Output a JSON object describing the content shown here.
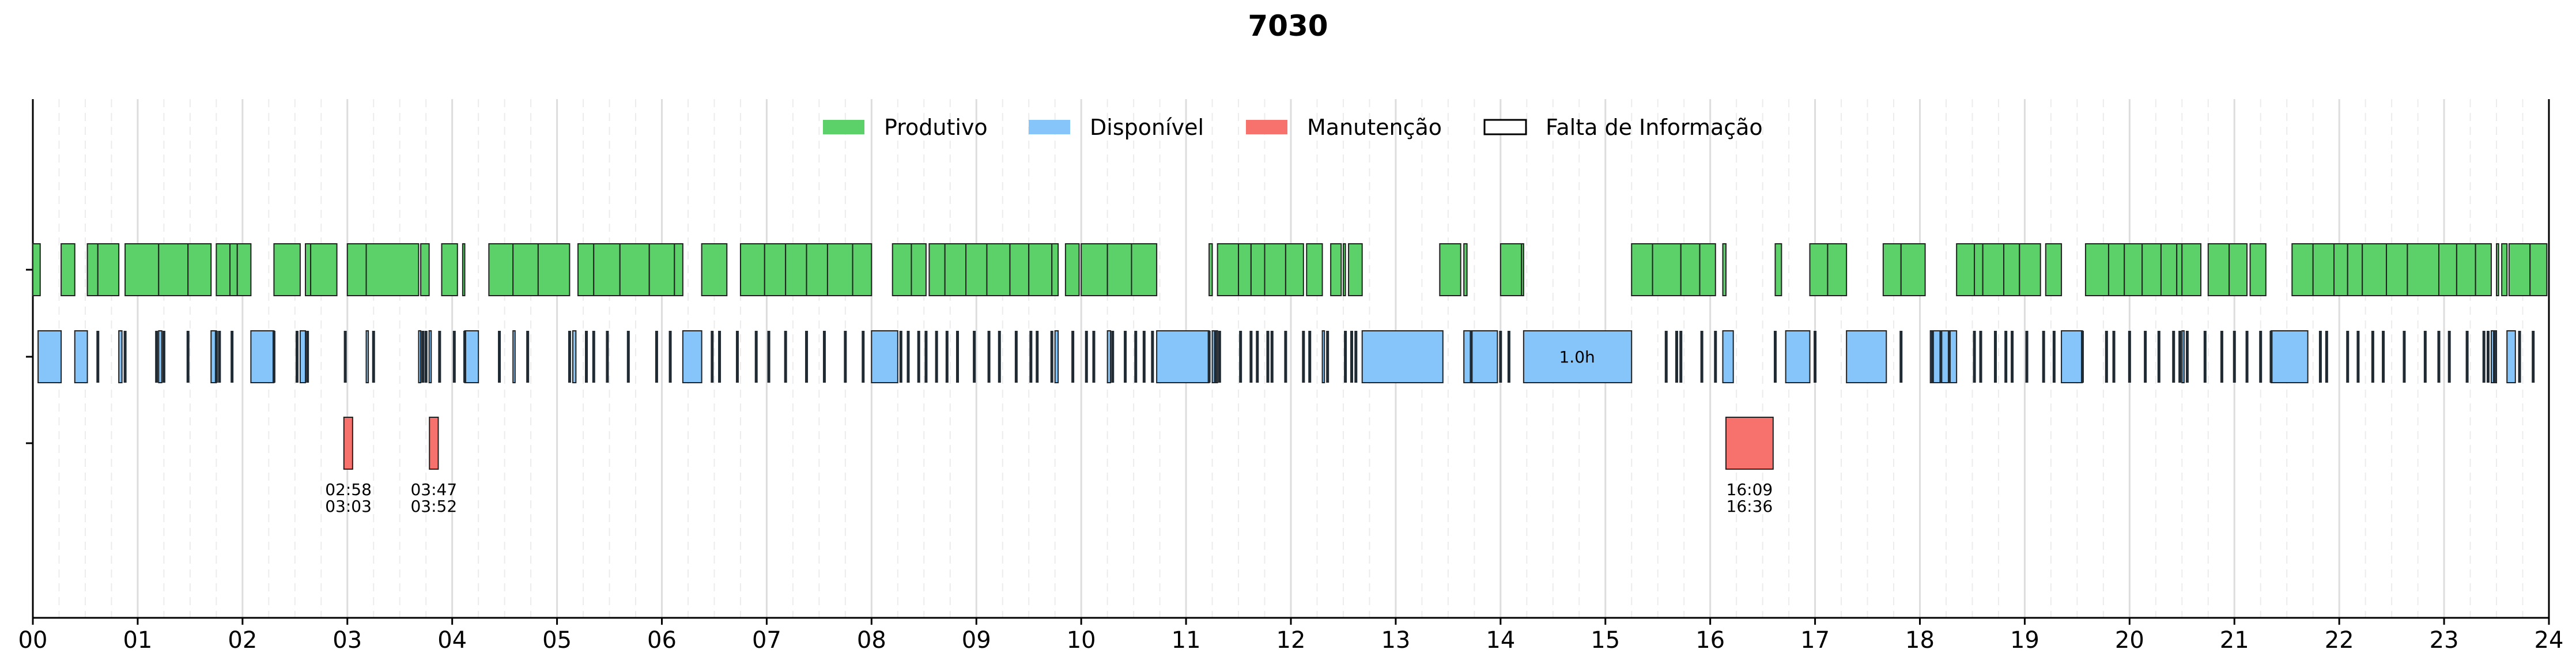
{
  "chart_data": {
    "type": "timeline",
    "title": "7030",
    "xlim": [
      0,
      24
    ],
    "x_ticks": [
      "00",
      "01",
      "02",
      "03",
      "04",
      "05",
      "06",
      "07",
      "08",
      "09",
      "10",
      "11",
      "12",
      "13",
      "14",
      "15",
      "16",
      "17",
      "18",
      "19",
      "20",
      "21",
      "22",
      "23",
      "24"
    ],
    "grid": "vertical",
    "legend": {
      "position": "top-center",
      "entries": [
        {
          "key": "produtivo",
          "label": "Produtivo",
          "color": "#5cd16a"
        },
        {
          "key": "disponivel",
          "label": "Disponível",
          "color": "#86c5fa"
        },
        {
          "key": "manutencao",
          "label": "Manutenção",
          "color": "#f7716d"
        },
        {
          "key": "falta",
          "label": "Falta de Informação",
          "color": "#ffffff"
        }
      ]
    },
    "series": [
      {
        "key": "produtivo",
        "color": "#5cd16a",
        "intervals": [
          [
            0.0,
            0.07
          ],
          [
            0.27,
            0.4
          ],
          [
            0.52,
            0.62
          ],
          [
            0.62,
            0.82
          ],
          [
            0.88,
            1.2
          ],
          [
            1.2,
            1.48
          ],
          [
            1.48,
            1.7
          ],
          [
            1.75,
            1.88
          ],
          [
            1.88,
            1.95
          ],
          [
            1.95,
            2.08
          ],
          [
            2.3,
            2.55
          ],
          [
            2.6,
            2.65
          ],
          [
            2.65,
            2.9
          ],
          [
            3.0,
            3.18
          ],
          [
            3.18,
            3.68
          ],
          [
            3.7,
            3.78
          ],
          [
            3.9,
            4.05
          ],
          [
            4.1,
            4.12
          ],
          [
            4.35,
            4.58
          ],
          [
            4.58,
            4.82
          ],
          [
            4.82,
            5.12
          ],
          [
            5.2,
            5.35
          ],
          [
            5.35,
            5.6
          ],
          [
            5.6,
            5.88
          ],
          [
            5.88,
            6.12
          ],
          [
            6.12,
            6.2
          ],
          [
            6.38,
            6.62
          ],
          [
            6.75,
            6.98
          ],
          [
            6.98,
            7.18
          ],
          [
            7.18,
            7.38
          ],
          [
            7.38,
            7.58
          ],
          [
            7.58,
            7.82
          ],
          [
            7.82,
            8.0
          ],
          [
            8.2,
            8.38
          ],
          [
            8.38,
            8.52
          ],
          [
            8.55,
            8.7
          ],
          [
            8.7,
            8.9
          ],
          [
            8.9,
            9.1
          ],
          [
            9.1,
            9.32
          ],
          [
            9.32,
            9.5
          ],
          [
            9.5,
            9.72
          ],
          [
            9.72,
            9.78
          ],
          [
            9.85,
            9.98
          ],
          [
            10.0,
            10.25
          ],
          [
            10.25,
            10.48
          ],
          [
            10.48,
            10.72
          ],
          [
            11.22,
            11.25
          ],
          [
            11.3,
            11.5
          ],
          [
            11.5,
            11.62
          ],
          [
            11.62,
            11.75
          ],
          [
            11.75,
            11.95
          ],
          [
            11.95,
            12.12
          ],
          [
            12.15,
            12.3
          ],
          [
            12.38,
            12.48
          ],
          [
            12.5,
            12.52
          ],
          [
            12.55,
            12.68
          ],
          [
            13.42,
            13.62
          ],
          [
            13.65,
            13.68
          ],
          [
            14.0,
            14.2
          ],
          [
            14.2,
            14.22
          ],
          [
            15.25,
            15.45
          ],
          [
            15.45,
            15.72
          ],
          [
            15.72,
            15.9
          ],
          [
            15.9,
            16.05
          ],
          [
            16.12,
            16.15
          ],
          [
            16.62,
            16.68
          ],
          [
            16.95,
            17.12
          ],
          [
            17.12,
            17.3
          ],
          [
            17.65,
            17.82
          ],
          [
            17.82,
            18.05
          ],
          [
            18.35,
            18.52
          ],
          [
            18.52,
            18.6
          ],
          [
            18.6,
            18.8
          ],
          [
            18.8,
            18.95
          ],
          [
            18.95,
            19.15
          ],
          [
            19.2,
            19.35
          ],
          [
            19.58,
            19.8
          ],
          [
            19.8,
            19.95
          ],
          [
            19.95,
            20.12
          ],
          [
            20.12,
            20.3
          ],
          [
            20.3,
            20.45
          ],
          [
            20.45,
            20.5
          ],
          [
            20.5,
            20.68
          ],
          [
            20.75,
            20.95
          ],
          [
            20.95,
            21.12
          ],
          [
            21.15,
            21.3
          ],
          [
            21.55,
            21.75
          ],
          [
            21.75,
            21.95
          ],
          [
            21.95,
            22.08
          ],
          [
            22.08,
            22.22
          ],
          [
            22.22,
            22.45
          ],
          [
            22.45,
            22.65
          ],
          [
            22.65,
            22.95
          ],
          [
            22.95,
            23.12
          ],
          [
            23.12,
            23.3
          ],
          [
            23.3,
            23.45
          ],
          [
            23.5,
            23.52
          ],
          [
            23.55,
            23.6
          ],
          [
            23.62,
            23.82
          ],
          [
            23.82,
            23.98
          ]
        ]
      },
      {
        "key": "disponivel",
        "color": "#86c5fa",
        "intervals": [
          [
            0.05,
            0.27
          ],
          [
            0.4,
            0.52
          ],
          [
            0.82,
            0.85
          ],
          [
            1.2,
            1.23
          ],
          [
            1.7,
            1.75
          ],
          [
            2.08,
            2.3
          ],
          [
            2.55,
            2.6
          ],
          [
            3.18,
            3.2
          ],
          [
            3.68,
            3.7
          ],
          [
            3.78,
            3.8
          ],
          [
            4.12,
            4.25
          ],
          [
            4.58,
            4.6
          ],
          [
            5.15,
            5.18
          ],
          [
            6.2,
            6.38
          ],
          [
            8.0,
            8.25
          ],
          [
            9.75,
            9.78
          ],
          [
            10.25,
            10.28
          ],
          [
            10.72,
            11.22
          ],
          [
            11.25,
            11.3
          ],
          [
            12.3,
            12.32
          ],
          [
            12.68,
            13.45
          ],
          [
            13.65,
            13.97
          ],
          [
            14.22,
            15.25
          ],
          [
            16.12,
            16.22
          ],
          [
            16.72,
            16.95
          ],
          [
            17.3,
            17.68
          ],
          [
            18.1,
            18.35
          ],
          [
            19.35,
            19.55
          ],
          [
            20.5,
            20.52
          ],
          [
            21.35,
            21.7
          ],
          [
            23.45,
            23.5
          ],
          [
            23.6,
            23.68
          ]
        ],
        "labels": [
          {
            "x": 14.73,
            "text": "1.0h"
          }
        ]
      },
      {
        "key": "manutencao",
        "color": "#f7716d",
        "intervals": [
          [
            2.967,
            3.05
          ],
          [
            3.783,
            3.867
          ],
          [
            16.15,
            16.6
          ]
        ],
        "labels": [
          {
            "x": 3.01,
            "line1": "02:58",
            "line2": "03:03"
          },
          {
            "x": 3.825,
            "line1": "03:47",
            "line2": "03:52"
          },
          {
            "x": 16.375,
            "line1": "16:09",
            "line2": "16:36"
          }
        ]
      },
      {
        "key": "falta",
        "color": "#ffffff",
        "intervals": [],
        "ticks": [
          0.62,
          0.88,
          1.18,
          1.25,
          1.48,
          1.75,
          1.78,
          1.9,
          2.3,
          2.52,
          2.62,
          2.98,
          3.25,
          3.72,
          3.75,
          3.88,
          4.02,
          4.12,
          4.45,
          4.72,
          5.12,
          5.28,
          5.35,
          5.48,
          5.68,
          5.95,
          6.08,
          6.48,
          6.55,
          6.72,
          6.9,
          7.02,
          7.18,
          7.38,
          7.55,
          7.75,
          7.92,
          8.28,
          8.35,
          8.45,
          8.52,
          8.62,
          8.72,
          8.82,
          8.98,
          9.12,
          9.22,
          9.38,
          9.52,
          9.58,
          9.72,
          9.92,
          10.05,
          10.12,
          10.3,
          10.42,
          10.52,
          10.6,
          10.68,
          11.22,
          11.28,
          11.32,
          11.52,
          11.62,
          11.68,
          11.78,
          11.82,
          11.95,
          12.12,
          12.18,
          12.35,
          12.52,
          12.58,
          12.62,
          13.72,
          14.0,
          14.08,
          15.58,
          15.68,
          15.72,
          15.92,
          16.05,
          16.62,
          17.0,
          17.82,
          18.12,
          18.2,
          18.28,
          18.52,
          18.58,
          18.72,
          18.82,
          18.88,
          19.02,
          19.18,
          19.28,
          19.55,
          19.78,
          19.85,
          20.0,
          20.15,
          20.28,
          20.42,
          20.48,
          20.55,
          20.72,
          20.88,
          21.0,
          21.12,
          21.25,
          21.35,
          21.82,
          21.88,
          22.08,
          22.18,
          22.32,
          22.42,
          22.62,
          22.82,
          22.95,
          23.05,
          23.22,
          23.38,
          23.42,
          23.48,
          23.72,
          23.85
        ]
      }
    ]
  }
}
